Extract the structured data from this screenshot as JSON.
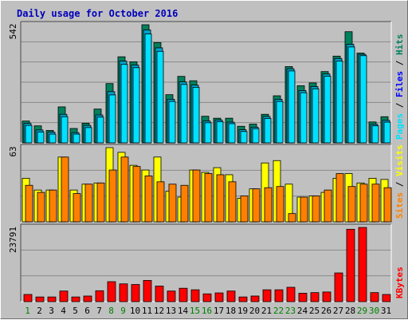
{
  "title": "Daily usage for October 2016",
  "colors": {
    "background": "#c0c0c0",
    "plot": "#c0c0c0",
    "title": "#0000bb",
    "hits": "#00805c",
    "files": "#00c8ff",
    "pages": "#00e0ff",
    "sites": "#ff8000",
    "visits": "#ffff00",
    "kbytes": "#ff0000",
    "weekend_label": "#008000",
    "weekday_label": "#000000"
  },
  "chart_data": [
    {
      "type": "bar",
      "name": "hits-files-pages",
      "ymax_label": "542",
      "ymax": 542,
      "x": [
        "1",
        "2",
        "3",
        "4",
        "5",
        "6",
        "7",
        "8",
        "9",
        "10",
        "11",
        "12",
        "13",
        "14",
        "15",
        "16",
        "17",
        "18",
        "19",
        "20",
        "21",
        "22",
        "23",
        "24",
        "25",
        "26",
        "27",
        "28",
        "29",
        "30",
        "31"
      ],
      "series": [
        {
          "name": "Hits",
          "values": [
            100,
            78,
            57,
            165,
            66,
            90,
            155,
            272,
            395,
            372,
            542,
            460,
            221,
            305,
            285,
            122,
            113,
            113,
            76,
            86,
            131,
            216,
            350,
            262,
            275,
            327,
            398,
            510,
            412,
            96,
            120
          ]
        },
        {
          "name": "Files",
          "values": [
            89,
            59,
            49,
            131,
            47,
            80,
            128,
            235,
            375,
            357,
            518,
            436,
            200,
            280,
            265,
            100,
            105,
            95,
            60,
            72,
            121,
            200,
            340,
            240,
            258,
            316,
            387,
            452,
            406,
            85,
            103
          ]
        },
        {
          "name": "Pages",
          "values": [
            80,
            50,
            40,
            120,
            40,
            70,
            118,
            220,
            360,
            345,
            500,
            420,
            190,
            268,
            255,
            92,
            97,
            88,
            52,
            65,
            112,
            190,
            330,
            230,
            248,
            306,
            375,
            440,
            400,
            78,
            95
          ]
        }
      ],
      "legend": [
        "Pages",
        "Files",
        "Hits"
      ]
    },
    {
      "type": "bar",
      "name": "sites-visits",
      "ymax_label": "63",
      "ymax": 63,
      "x": [
        "1",
        "2",
        "3",
        "4",
        "5",
        "6",
        "7",
        "8",
        "9",
        "10",
        "11",
        "12",
        "13",
        "14",
        "15",
        "16",
        "17",
        "18",
        "19",
        "20",
        "21",
        "22",
        "23",
        "24",
        "25",
        "26",
        "27",
        "28",
        "29",
        "30",
        "31"
      ],
      "series": [
        {
          "name": "Visits",
          "values": [
            37,
            27,
            27,
            55,
            27,
            32,
            33,
            63,
            59,
            48,
            44,
            55,
            26,
            21,
            44,
            42,
            46,
            40,
            20,
            28,
            50,
            52,
            32,
            21,
            22,
            25,
            37,
            41,
            33,
            37,
            36
          ]
        },
        {
          "name": "Sites",
          "values": [
            31,
            25,
            27,
            55,
            24,
            32,
            33,
            44,
            55,
            47,
            39,
            34,
            32,
            31,
            44,
            41,
            40,
            34,
            22,
            28,
            29,
            30,
            7,
            21,
            22,
            27,
            41,
            30,
            32,
            32,
            29
          ]
        }
      ],
      "legend": [
        "Sites",
        "Visits"
      ]
    },
    {
      "type": "bar",
      "name": "kbytes",
      "ymax_label": "23791",
      "ymax": 23791,
      "x": [
        "1",
        "2",
        "3",
        "4",
        "5",
        "6",
        "7",
        "8",
        "9",
        "10",
        "11",
        "12",
        "13",
        "14",
        "15",
        "16",
        "17",
        "18",
        "19",
        "20",
        "21",
        "22",
        "23",
        "24",
        "25",
        "26",
        "27",
        "28",
        "29",
        "30",
        "31"
      ],
      "series": [
        {
          "name": "KBytes",
          "values": [
            2300,
            1500,
            1500,
            3400,
            1500,
            1800,
            3500,
            6400,
            5700,
            5500,
            6800,
            5000,
            3400,
            4300,
            3800,
            2500,
            2800,
            3400,
            1500,
            1800,
            3800,
            3800,
            4600,
            2700,
            2900,
            3100,
            9200,
            23200,
            23791,
            2900,
            2300
          ]
        }
      ],
      "legend": [
        "KBytes"
      ]
    }
  ],
  "weekend_days": [
    "1",
    "8",
    "9",
    "15",
    "16",
    "22",
    "23",
    "29",
    "30"
  ]
}
